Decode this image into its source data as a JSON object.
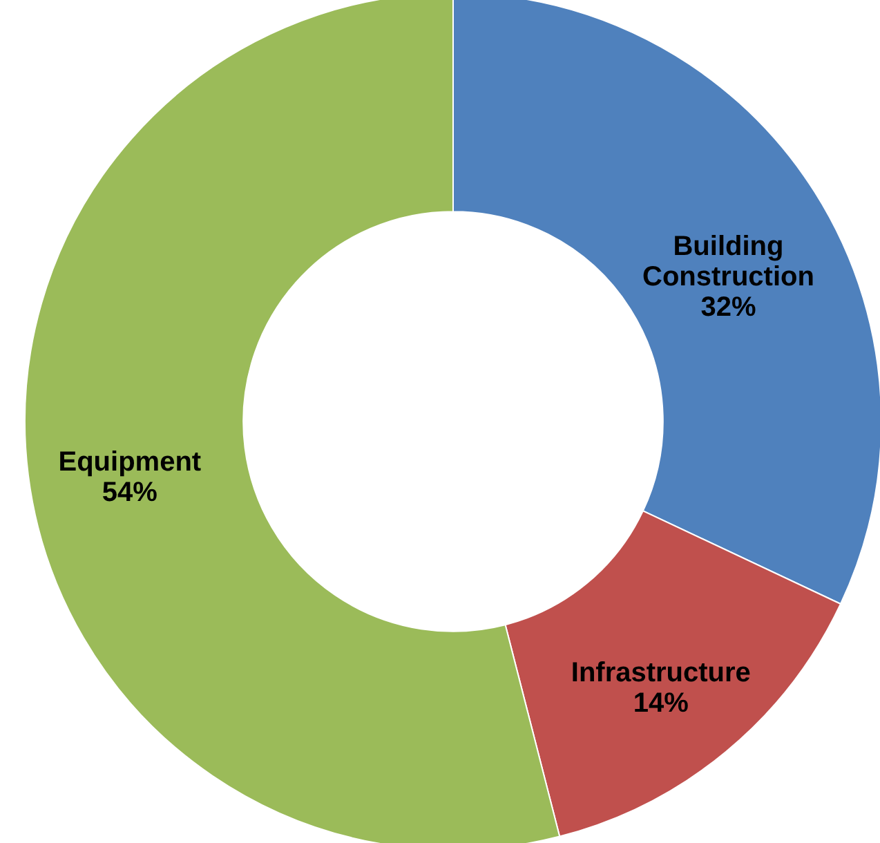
{
  "chart_data": {
    "type": "donut",
    "categories": [
      "Building Construction",
      "Infrastructure",
      "Equipment"
    ],
    "values": [
      32,
      14,
      54
    ],
    "colors": [
      "#4f81bd",
      "#c0504d",
      "#9bbb59"
    ],
    "value_labels": [
      "32%",
      "14%",
      "54%"
    ]
  }
}
